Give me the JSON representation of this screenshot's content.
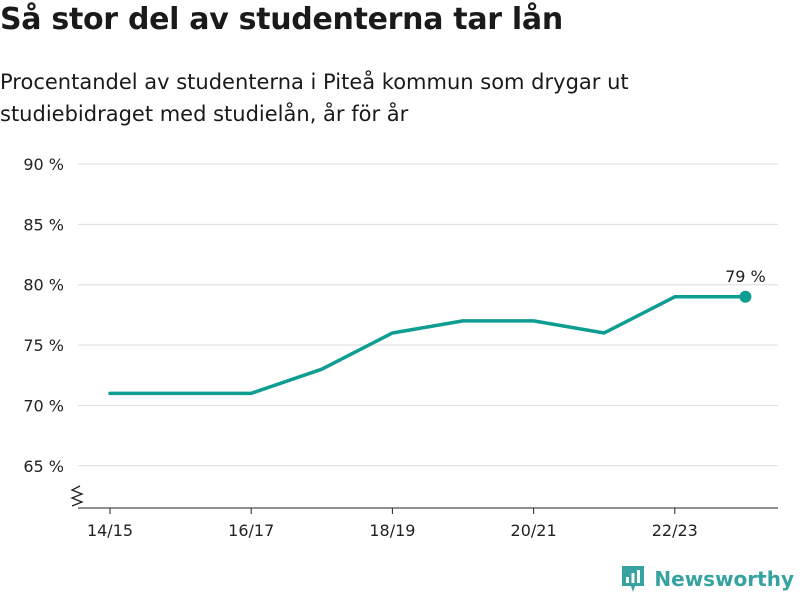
{
  "title": "Så stor del av studenterna tar lån",
  "subtitle": "Procentandel av studenterna i Piteå kommun som drygar ut studiebidraget med studielån, år för år",
  "brand": {
    "name": "Newsworthy",
    "color": "#36a3a1"
  },
  "colors": {
    "line": "#0e9e91",
    "grid": "#dddddd",
    "axis": "#222222"
  },
  "chart_data": {
    "type": "line",
    "x": [
      "14/15",
      "15/16",
      "16/17",
      "17/18",
      "18/19",
      "19/20",
      "20/21",
      "21/22",
      "22/23",
      "23/24"
    ],
    "series": [
      {
        "values": [
          71,
          71,
          71,
          73,
          76,
          77,
          77,
          76,
          79,
          79
        ]
      }
    ],
    "x_tick_labels": [
      "14/15",
      "16/17",
      "18/19",
      "20/21",
      "22/23"
    ],
    "y_ticks": [
      65,
      70,
      75,
      80,
      85,
      90
    ],
    "y_tick_labels": [
      "65 %",
      "70 %",
      "75 %",
      "80 %",
      "85 %",
      "90 %"
    ],
    "ylim": [
      61.5,
      90
    ],
    "y_axis_break": true,
    "grid": true,
    "annotation": {
      "x": "23/24",
      "value": 79,
      "text": "79 %"
    }
  }
}
